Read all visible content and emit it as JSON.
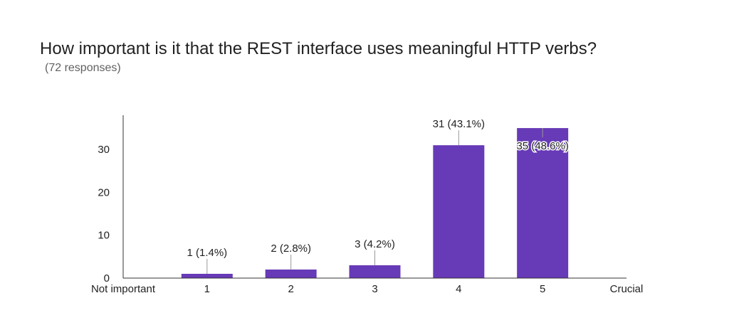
{
  "chart_data": {
    "type": "bar",
    "title": "How important is it that the REST interface uses meaningful HTTP verbs?",
    "subtitle": "(72 responses)",
    "categories": [
      "1",
      "2",
      "3",
      "4",
      "5"
    ],
    "values": [
      1,
      2,
      3,
      31,
      35
    ],
    "data_labels": [
      "1 (1.4%)",
      "2 (2.8%)",
      "3 (4.2%)",
      "31 (43.1%)",
      "35 (48.6%)"
    ],
    "scale_labels": {
      "left": "Not important",
      "right": "Crucial"
    },
    "yticks": [
      0,
      10,
      20,
      30
    ],
    "ylim": [
      0,
      38
    ],
    "xlim": [
      0,
      6
    ],
    "grid": false,
    "legend": "none",
    "colors": {
      "bar": "#673ab7",
      "axis": "#333333",
      "leader": "#999999"
    }
  }
}
